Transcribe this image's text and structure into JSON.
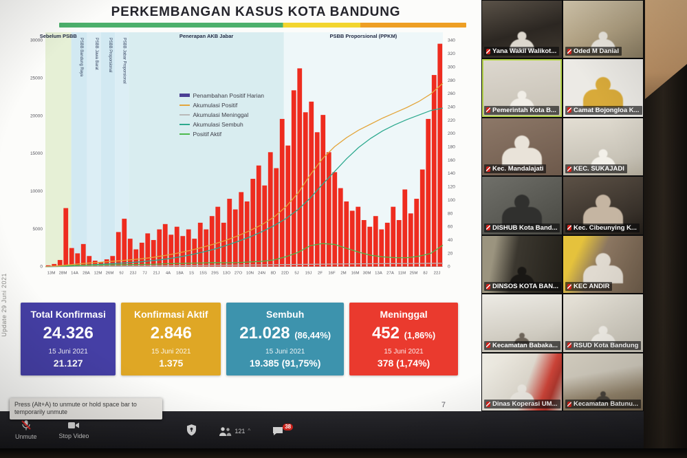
{
  "slide": {
    "title": "PERKEMBANGAN  KASUS  KOTA  BANDUNG",
    "update_note": "Update 29 Juni 2021",
    "page_number": "7",
    "cards": [
      {
        "title": "Total Konfirmasi",
        "value": "24.326",
        "date": "15 Juni 2021",
        "secondary": "21.127",
        "color": "#453fa5"
      },
      {
        "title": "Konfirmasi Aktif",
        "value": "2.846",
        "date": "15 Juni 2021",
        "secondary": "1.375",
        "color": "#dfa725"
      },
      {
        "title": "Sembuh",
        "value": "21.028",
        "value_pct": "(86,44%)",
        "date": "15 Juni 2021",
        "secondary": "19.385 (91,75%)",
        "color": "#3d93ad"
      },
      {
        "title": "Meninggal",
        "value": "452",
        "value_pct": "(1,86%)",
        "date": "15 Juni 2021",
        "secondary": "378 (1,74%)",
        "color": "#ea3a2e"
      }
    ]
  },
  "chart_data": {
    "type": "combo-bar-line",
    "title": "Perkembangan Kasus Kota Bandung",
    "left_axis": {
      "min": 0,
      "max": 30000,
      "step": 5000
    },
    "right_axis": {
      "min": 0,
      "max": 340,
      "step": 20
    },
    "x_labels": [
      "13M",
      "28M",
      "14A",
      "28A",
      "12M",
      "26M",
      "9J",
      "23J",
      "7J",
      "21J",
      "4A",
      "18A",
      "1S",
      "15S",
      "29S",
      "13O",
      "27O",
      "10N",
      "24N",
      "8D",
      "22D",
      "5J",
      "19J",
      "2F",
      "16F",
      "2M",
      "16M",
      "30M",
      "13A",
      "27A",
      "11M",
      "25M",
      "8J",
      "22J"
    ],
    "bands": [
      {
        "label": "Sebelum PSBB",
        "from": 0.0,
        "to": 0.065,
        "color": "#e6f0d6",
        "vertical": false
      },
      {
        "label": "PSBB Bandung Raya",
        "from": 0.065,
        "to": 0.105,
        "color": "#d2e9f2",
        "vertical": true
      },
      {
        "label": "PSBB Jawa Barat",
        "from": 0.105,
        "to": 0.14,
        "color": "#dceef5",
        "vertical": true
      },
      {
        "label": "PSBB Proporsional",
        "from": 0.14,
        "to": 0.175,
        "color": "#d2e9f2",
        "vertical": true
      },
      {
        "label": "PSBB Jabar Proporsional",
        "from": 0.175,
        "to": 0.21,
        "color": "#dceef5",
        "vertical": true
      },
      {
        "label": "Penerapan AKB Jabar",
        "from": 0.21,
        "to": 0.6,
        "color": "#d9edf0",
        "vertical": false
      },
      {
        "label": "PSBB Proporsional (PPKM)",
        "from": 0.6,
        "to": 1.0,
        "color": "#eef7f9",
        "vertical": false
      }
    ],
    "legend": [
      {
        "label": "Penambahan Positif Harian",
        "color": "#4b3f94",
        "type": "bar"
      },
      {
        "label": "Akumulasi Positif",
        "color": "#e3a63c",
        "type": "line"
      },
      {
        "label": "Akumulasi Meninggal",
        "color": "#b8b8b8",
        "type": "line"
      },
      {
        "label": "Akumulasi Sembuh",
        "color": "#2ca98e",
        "type": "line"
      },
      {
        "label": "Positif Aktif",
        "color": "#4cba4c",
        "type": "line"
      }
    ],
    "bars": {
      "name": "Penambahan Positif Harian",
      "axis": "right",
      "color": "#ee2c1f",
      "values": [
        2,
        4,
        10,
        88,
        28,
        20,
        34,
        16,
        9,
        7,
        11,
        16,
        52,
        72,
        42,
        26,
        36,
        50,
        40,
        56,
        64,
        48,
        60,
        46,
        56,
        42,
        66,
        56,
        76,
        90,
        66,
        102,
        86,
        112,
        98,
        132,
        152,
        122,
        172,
        148,
        222,
        182,
        265,
        298,
        232,
        248,
        202,
        228,
        172,
        142,
        118,
        98,
        84,
        90,
        70,
        60,
        76,
        56,
        66,
        90,
        70,
        116,
        80,
        102,
        146,
        222,
        288,
        335
      ]
    },
    "series": [
      {
        "name": "Akumulasi Meninggal",
        "axis": "left",
        "color": "#b8b8b8",
        "values": [
          0,
          12,
          25,
          38,
          50,
          62,
          72,
          82,
          92,
          104,
          116,
          128,
          142,
          158,
          174,
          192,
          208,
          224,
          240,
          256,
          274,
          294,
          314,
          334,
          350,
          364,
          376,
          386,
          396,
          406,
          414,
          424,
          436,
          452
        ]
      },
      {
        "name": "Akumulasi Sembuh",
        "axis": "left",
        "color": "#2ca98e",
        "values": [
          0,
          30,
          90,
          170,
          260,
          350,
          440,
          540,
          660,
          820,
          1000,
          1250,
          1550,
          1900,
          2300,
          2800,
          3350,
          3950,
          4650,
          5450,
          6400,
          7600,
          9100,
          10900,
          12600,
          14300,
          15800,
          17000,
          18000,
          18800,
          19500,
          20100,
          20700,
          21028
        ]
      },
      {
        "name": "Positif Aktif",
        "axis": "left",
        "color": "#4cba4c",
        "values": [
          0,
          58,
          135,
          192,
          210,
          228,
          248,
          278,
          298,
          326,
          384,
          422,
          458,
          492,
          526,
          508,
          542,
          626,
          710,
          894,
          1326,
          1906,
          2786,
          3066,
          2950,
          2436,
          1924,
          1514,
          1304,
          1194,
          1186,
          1376,
          1764,
          2846
        ]
      },
      {
        "name": "Akumulasi Positif",
        "axis": "left",
        "color": "#e3a63c",
        "values": [
          0,
          100,
          250,
          400,
          520,
          640,
          760,
          900,
          1050,
          1250,
          1500,
          1800,
          2150,
          2550,
          3000,
          3500,
          4100,
          4800,
          5600,
          6600,
          8000,
          9800,
          12200,
          14300,
          15900,
          17100,
          18100,
          18900,
          19700,
          20400,
          21100,
          21900,
          22900,
          24326
        ]
      }
    ]
  },
  "participants": {
    "list": [
      {
        "name": "Yana Wakil Walikot...",
        "active": false
      },
      {
        "name": "Oded M Danial",
        "active": false
      },
      {
        "name": "Pemerintah Kota B...",
        "active": true
      },
      {
        "name": "Camat Bojongloa K...",
        "active": false
      },
      {
        "name": "Kec. Mandalajati",
        "active": false
      },
      {
        "name": "KEC. SUKAJADI",
        "active": false
      },
      {
        "name": "DISHUB Kota Band...",
        "active": false
      },
      {
        "name": "Kec. Cibeunying K...",
        "active": false
      },
      {
        "name": "DINSOS KOTA BAN...",
        "active": false
      },
      {
        "name": "KEC ANDIR",
        "active": false
      },
      {
        "name": "Kecamatan Babaka...",
        "active": false
      },
      {
        "name": "RSUD Kota Bandung",
        "active": false
      },
      {
        "name": "Dinas Koperasi UM...",
        "active": false
      },
      {
        "name": "Kecamatan Batunu...",
        "active": false
      }
    ]
  },
  "toolbar": {
    "tooltip": "Press (Alt+A) to unmute or hold space bar to temporarily unmute",
    "unmute_label": "Unmute",
    "stop_video_label": "Stop Video",
    "participants_count": "121",
    "chat_badge": "38"
  }
}
